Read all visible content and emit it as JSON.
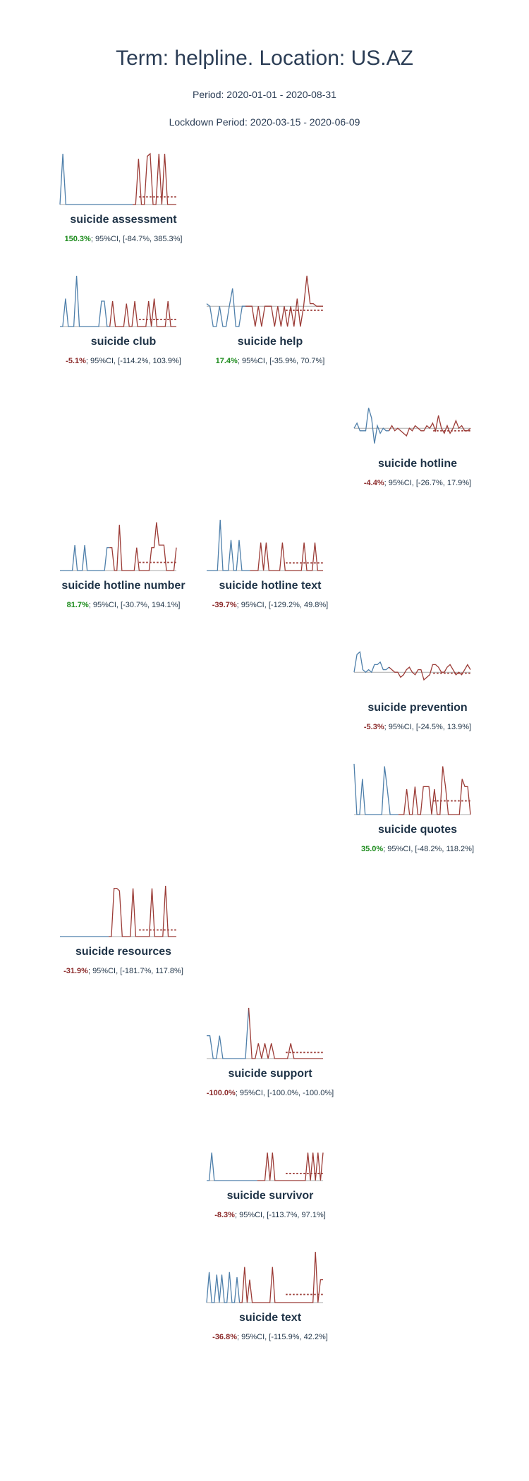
{
  "header": {
    "title": "Term: helpline. Location: US.AZ",
    "period": "Period: 2020-01-01 - 2020-08-31",
    "lockdown": "Lockdown Period: 2020-03-15 - 2020-06-09"
  },
  "colors": {
    "pre": "#4e7faa",
    "post": "#9b3b36",
    "baseline": "#aaaaaa",
    "positive": "#1a8a1a",
    "negative": "#8b2a2a"
  },
  "chart_data": {
    "type": "line",
    "panels": [
      {
        "term": "suicide assessment",
        "pct": "150.3%",
        "ci": "; 95%CI, [-84.7%, 385.3%]",
        "sign": "pos",
        "pre": [
          0,
          100,
          0,
          0,
          0,
          0,
          0,
          0,
          0,
          0,
          0,
          0,
          0,
          0,
          0,
          0,
          0,
          0,
          0,
          0,
          0,
          0,
          0,
          0,
          0,
          0
        ],
        "post": [
          0,
          90,
          0,
          0,
          95,
          100,
          0,
          0,
          100,
          0,
          100,
          0,
          0,
          0,
          0
        ],
        "baseline": 0,
        "expected": 15
      },
      {
        "term": "suicide club",
        "pct": "-5.1%",
        "ci": "; 95%CI, [-114.2%, 103.9%]",
        "sign": "neg",
        "pre": [
          0,
          0,
          55,
          0,
          0,
          0,
          100,
          0,
          0,
          0,
          0,
          0,
          0,
          0,
          0,
          50,
          50,
          0,
          0
        ],
        "post": [
          50,
          0,
          0,
          0,
          0,
          45,
          0,
          0,
          50,
          0,
          0,
          0,
          0,
          50,
          0,
          55,
          0,
          0,
          0,
          0,
          50,
          0,
          0,
          0
        ],
        "baseline": 0,
        "expected": 14
      },
      {
        "term": "suicide help",
        "pct": "17.4%",
        "ci": "; 95%CI, [-35.9%, 70.7%]",
        "sign": "pos",
        "pre": [
          45,
          40,
          0,
          0,
          40,
          0,
          0,
          40,
          75,
          0,
          0,
          40,
          40
        ],
        "post": [
          40,
          40,
          0,
          40,
          0,
          40,
          40,
          40,
          0,
          40,
          0,
          40,
          0,
          40,
          0,
          55,
          0,
          40,
          100,
          45,
          45,
          40,
          40,
          40
        ],
        "baseline": 40,
        "expected": 32
      },
      {
        "term": "suicide hotline",
        "pct": "-4.4%",
        "ci": "; 95%CI, [-26.7%, 17.9%]",
        "sign": "neg",
        "pre": [
          40,
          50,
          35,
          35,
          35,
          80,
          60,
          10,
          45,
          30,
          40,
          35,
          35
        ],
        "post": [
          45,
          35,
          40,
          35,
          30,
          25,
          40,
          35,
          45,
          40,
          35,
          35,
          45,
          40,
          50,
          35,
          65,
          40,
          30,
          45,
          30,
          40,
          55,
          40,
          45,
          35,
          35,
          40
        ],
        "baseline": 40,
        "expected": 35
      },
      {
        "term": "suicide hotline number",
        "pct": "81.7%",
        "ci": "; 95%CI, [-30.7%, 194.1%]",
        "sign": "pos",
        "pre": [
          0,
          0,
          0,
          0,
          0,
          0,
          50,
          0,
          0,
          0,
          50,
          0,
          0,
          0,
          0,
          0,
          0,
          0,
          0,
          45,
          45
        ],
        "post": [
          45,
          0,
          0,
          90,
          0,
          0,
          0,
          0,
          0,
          0,
          45,
          0,
          0,
          0,
          0,
          0,
          45,
          45,
          95,
          50,
          50,
          50,
          0,
          0,
          0,
          0,
          45
        ],
        "baseline": 0,
        "expected": 16
      },
      {
        "term": "suicide hotline text",
        "pct": "-39.7%",
        "ci": "; 95%CI, [-129.2%, 49.8%]",
        "sign": "neg",
        "pre": [
          0,
          0,
          0,
          0,
          0,
          100,
          0,
          0,
          0,
          60,
          0,
          0,
          60,
          0,
          0,
          0,
          0
        ],
        "post": [
          0,
          0,
          0,
          55,
          0,
          55,
          0,
          0,
          0,
          0,
          0,
          55,
          0,
          0,
          0,
          0,
          0,
          0,
          0,
          55,
          0,
          0,
          0,
          55,
          0,
          0,
          0
        ],
        "baseline": 0,
        "expected": 15
      },
      {
        "term": "suicide prevention",
        "pct": "-5.3%",
        "ci": "; 95%CI, [-24.5%, 13.9%]",
        "sign": "neg",
        "pre": [
          40,
          75,
          80,
          45,
          40,
          45,
          40,
          55,
          55,
          60,
          45,
          45,
          50
        ],
        "post": [
          45,
          40,
          40,
          30,
          35,
          45,
          50,
          40,
          35,
          45,
          45,
          25,
          30,
          35,
          55,
          55,
          50,
          40,
          40,
          50,
          55,
          45,
          35,
          40,
          35,
          45,
          55,
          45
        ],
        "baseline": 40,
        "expected": 38
      },
      {
        "term": "suicide quotes",
        "pct": "35.0%",
        "ci": "; 95%CI, [-48.2%, 118.2%]",
        "sign": "pos",
        "pre": [
          100,
          0,
          0,
          70,
          0,
          0,
          0,
          0,
          0,
          0,
          0,
          95,
          50,
          0,
          0,
          0,
          0
        ],
        "post": [
          0,
          0,
          50,
          0,
          0,
          55,
          0,
          0,
          55,
          55,
          55,
          0,
          50,
          0,
          0,
          95,
          55,
          0,
          0,
          0,
          0,
          0,
          70,
          55,
          55,
          0
        ],
        "baseline": 0,
        "expected": 27
      },
      {
        "term": "suicide resources",
        "pct": "-31.9%",
        "ci": "; 95%CI, [-181.7%, 117.8%]",
        "sign": "neg",
        "pre": [
          0,
          0,
          0,
          0,
          0,
          0,
          0,
          0,
          0,
          0,
          0,
          0,
          0,
          0,
          0,
          0,
          0,
          0,
          0
        ],
        "post": [
          0,
          95,
          95,
          90,
          0,
          0,
          0,
          0,
          95,
          0,
          0,
          0,
          0,
          0,
          0,
          95,
          0,
          0,
          0,
          0,
          100,
          0,
          0,
          0,
          0
        ],
        "baseline": 0,
        "expected": 13
      },
      {
        "term": "suicide support",
        "pct": "-100.0%",
        "ci": "; 95%CI, [-100.0%, -100.0%]",
        "sign": "neg",
        "pre": [
          45,
          45,
          0,
          0,
          45,
          0,
          0,
          0,
          0,
          0,
          0,
          0,
          0,
          100
        ],
        "post": [
          0,
          0,
          30,
          0,
          30,
          0,
          30,
          0,
          0,
          0,
          0,
          0,
          30,
          0,
          0,
          0,
          0,
          0,
          0,
          0,
          0,
          0,
          0
        ],
        "baseline": 0,
        "expected": 12
      },
      {
        "term": "suicide survivor",
        "pct": "-8.3%",
        "ci": "; 95%CI, [-113.7%, 97.1%]",
        "sign": "neg",
        "pre": [
          0,
          0,
          55,
          0,
          0,
          0,
          0,
          0,
          0,
          0,
          0,
          0,
          0,
          0,
          0,
          0,
          0,
          0,
          0,
          0,
          0
        ],
        "post": [
          0,
          0,
          0,
          55,
          0,
          55,
          0,
          0,
          0,
          0,
          0,
          0,
          0,
          0,
          0,
          0,
          0,
          0,
          0,
          55,
          0,
          55,
          0,
          55,
          0,
          55
        ],
        "baseline": 0,
        "expected": 14
      },
      {
        "term": "suicide text",
        "pct": "-36.8%",
        "ci": "; 95%CI, [-115.9%, 42.2%]",
        "sign": "neg",
        "pre": [
          0,
          60,
          0,
          0,
          55,
          0,
          55,
          0,
          0,
          60,
          0,
          0,
          50,
          0
        ],
        "post": [
          0,
          70,
          0,
          45,
          0,
          0,
          0,
          0,
          0,
          0,
          0,
          0,
          70,
          0,
          0,
          0,
          0,
          0,
          0,
          0,
          0,
          0,
          0,
          0,
          0,
          0,
          0,
          0,
          0,
          100,
          0,
          45,
          45
        ],
        "baseline": 0,
        "expected": 16
      }
    ]
  }
}
